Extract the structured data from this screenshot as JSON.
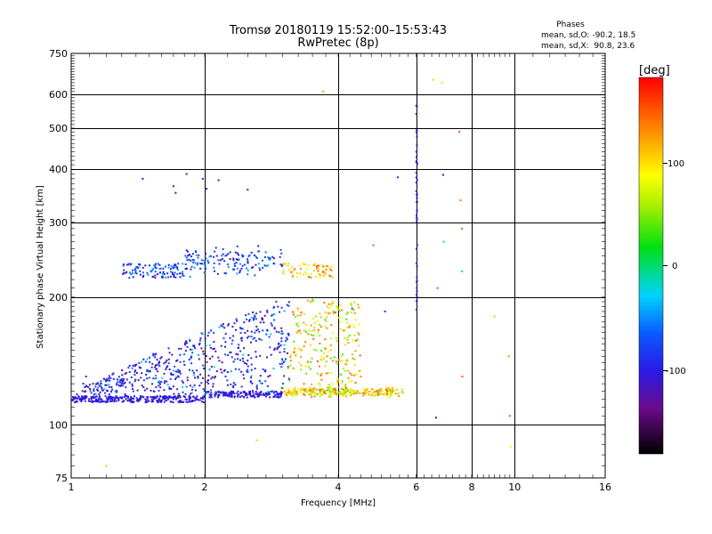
{
  "header": {
    "title_line1": "Tromsø 20180119 15:52:00–15:53:43",
    "title_line2": "RwPretec (8p)"
  },
  "stats": {
    "heading": "Phases",
    "line1": "mean, sd,O: -90.2, 18.5",
    "line2": "mean, sd,X:  90.8, 23.6"
  },
  "colorbar": {
    "unit_label": "[deg]",
    "ticks": [
      "100",
      "0",
      "-100"
    ],
    "range": [
      -180,
      180
    ],
    "colormap": "rainbow (black→purple→blue→cyan→green→yellow→orange→red)"
  },
  "chart_data": {
    "type": "scatter",
    "xlabel": "Frequency [MHz]",
    "ylabel": "Stationary phase Virtual Height [km]",
    "xscale": "log",
    "yscale": "log",
    "xlim": [
      1,
      16
    ],
    "ylim": [
      75,
      750
    ],
    "xticks": [
      "1",
      "2",
      "4",
      "6",
      "8",
      "10",
      "16"
    ],
    "yticks": [
      "75",
      "100",
      "200",
      "300",
      "400",
      "500",
      "600",
      "750"
    ],
    "x_major_gridlines": [
      2,
      4,
      6,
      8,
      10
    ],
    "y_major_gridlines": [
      100,
      200,
      300,
      400,
      500,
      600
    ],
    "grid": true,
    "color_dimension": "phase [deg]",
    "features": [
      {
        "name": "E-layer trace",
        "x_range": [
          1.0,
          5.6
        ],
        "y_range": [
          112,
          122
        ],
        "phase_deg": [
          -120,
          130
        ]
      },
      {
        "name": "spread cluster",
        "x_range": [
          1.05,
          4.5
        ],
        "y_range": [
          120,
          200
        ],
        "phase_deg": [
          -140,
          140
        ]
      },
      {
        "name": "F-layer trace",
        "x_range": [
          1.3,
          3.9
        ],
        "y_range": [
          220,
          265
        ],
        "phase_deg": [
          -130,
          90
        ]
      },
      {
        "name": "vertical streak at 6 MHz",
        "x_range": [
          6.0,
          6.05
        ],
        "y_range": [
          180,
          570
        ],
        "phase_deg": [
          -120,
          -100
        ]
      }
    ],
    "points": [
      {
        "x": 1.03,
        "y": 118,
        "phase": -100
      },
      {
        "x": 1.08,
        "y": 130,
        "phase": -90
      },
      {
        "x": 1.12,
        "y": 125,
        "phase": -110
      },
      {
        "x": 1.2,
        "y": 80,
        "phase": 110
      },
      {
        "x": 1.31,
        "y": 127,
        "phase": -100
      },
      {
        "x": 1.38,
        "y": 223,
        "phase": -110
      },
      {
        "x": 1.45,
        "y": 380,
        "phase": -100
      },
      {
        "x": 1.55,
        "y": 138,
        "phase": -120
      },
      {
        "x": 1.7,
        "y": 365,
        "phase": -100
      },
      {
        "x": 1.72,
        "y": 352,
        "phase": -120
      },
      {
        "x": 1.82,
        "y": 390,
        "phase": -100
      },
      {
        "x": 1.98,
        "y": 380,
        "phase": -100
      },
      {
        "x": 2.02,
        "y": 360,
        "phase": -110
      },
      {
        "x": 2.15,
        "y": 377,
        "phase": -100
      },
      {
        "x": 2.5,
        "y": 358,
        "phase": -100
      },
      {
        "x": 2.62,
        "y": 92,
        "phase": 60
      },
      {
        "x": 2.9,
        "y": 195,
        "phase": -90
      },
      {
        "x": 3.7,
        "y": 610,
        "phase": 120
      },
      {
        "x": 4.3,
        "y": 188,
        "phase": -80
      },
      {
        "x": 4.8,
        "y": 265,
        "phase": 150
      },
      {
        "x": 5.1,
        "y": 185,
        "phase": -90
      },
      {
        "x": 5.45,
        "y": 383,
        "phase": -90
      },
      {
        "x": 6.0,
        "y": 565,
        "phase": -110
      },
      {
        "x": 6.0,
        "y": 540,
        "phase": -120
      },
      {
        "x": 6.0,
        "y": 440,
        "phase": -120
      },
      {
        "x": 6.02,
        "y": 320,
        "phase": -110
      },
      {
        "x": 6.55,
        "y": 650,
        "phase": 60
      },
      {
        "x": 6.65,
        "y": 104,
        "phase": -110
      },
      {
        "x": 6.7,
        "y": 210,
        "phase": 150
      },
      {
        "x": 6.85,
        "y": 640,
        "phase": 100
      },
      {
        "x": 6.9,
        "y": 388,
        "phase": -100
      },
      {
        "x": 6.92,
        "y": 270,
        "phase": -20
      },
      {
        "x": 7.5,
        "y": 490,
        "phase": 150
      },
      {
        "x": 7.55,
        "y": 338,
        "phase": 140
      },
      {
        "x": 7.6,
        "y": 290,
        "phase": 150
      },
      {
        "x": 7.6,
        "y": 230,
        "phase": -30
      },
      {
        "x": 7.62,
        "y": 130,
        "phase": 150
      },
      {
        "x": 9.0,
        "y": 180,
        "phase": 110
      },
      {
        "x": 9.7,
        "y": 145,
        "phase": 130
      },
      {
        "x": 9.75,
        "y": 105,
        "phase": 150
      },
      {
        "x": 9.8,
        "y": 89,
        "phase": 90
      }
    ]
  }
}
